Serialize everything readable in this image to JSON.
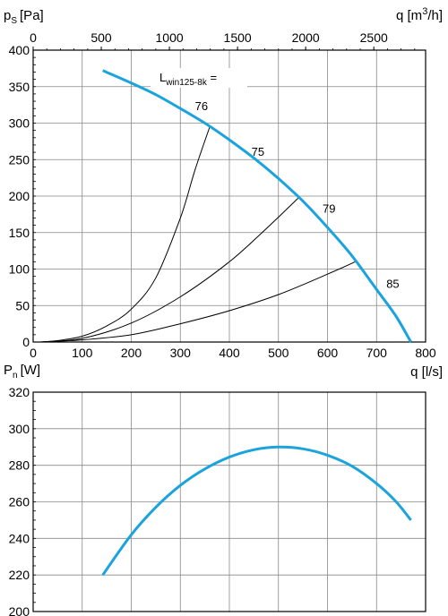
{
  "chart_data": [
    {
      "type": "line",
      "ylabel": "p",
      "ylabel_sub": "S",
      "ylabel_unit": "[Pa]",
      "xlabel_bottom": "q [l/s]",
      "xlabel_top_prefix": "q [m",
      "xlabel_top_sup": "3",
      "xlabel_top_suffix": "/h]",
      "xlim": [
        0,
        800
      ],
      "ylim": [
        0,
        400
      ],
      "x_ticks": [
        0,
        100,
        200,
        300,
        400,
        500,
        600,
        700,
        800
      ],
      "y_ticks": [
        0,
        50,
        100,
        150,
        200,
        250,
        300,
        350,
        400
      ],
      "top_ticks": [
        0,
        500,
        1000,
        1500,
        2000,
        2500
      ],
      "grid": true,
      "fan_curve": {
        "color": "#1aa3dd",
        "x": [
          142,
          200,
          250,
          300,
          350,
          400,
          450,
          500,
          550,
          600,
          650,
          700,
          740,
          770
        ],
        "y": [
          372,
          355,
          339,
          320,
          300,
          277,
          252,
          224,
          193,
          157,
          118,
          72,
          35,
          0
        ]
      },
      "system_curves": [
        {
          "x": [
            15,
            50,
            100,
            150,
            200,
            250,
            300,
            330,
            360
          ],
          "y": [
            0,
            2,
            8,
            22,
            45,
            88,
            170,
            236,
            295
          ]
        },
        {
          "x": [
            15,
            100,
            200,
            300,
            400,
            470,
            540
          ],
          "y": [
            0,
            5,
            26,
            62,
            110,
            152,
            197
          ]
        },
        {
          "x": [
            15,
            100,
            200,
            300,
            400,
            500,
            600,
            660
          ],
          "y": [
            0,
            3,
            10,
            25,
            43,
            65,
            93,
            111
          ]
        }
      ],
      "annotation_lw_prefix": "L",
      "annotation_lw_sub": "win125-8k",
      "annotation_lw_suffix": " =",
      "sound_labels": [
        {
          "text": "76",
          "x": 330,
          "y": 318
        },
        {
          "text": "75",
          "x": 445,
          "y": 255
        },
        {
          "text": "79",
          "x": 590,
          "y": 177
        },
        {
          "text": "85",
          "x": 720,
          "y": 74
        }
      ]
    },
    {
      "type": "line",
      "ylabel": "P",
      "ylabel_sub": "n",
      "ylabel_unit": "[W]",
      "xlim": [
        0,
        800
      ],
      "ylim": [
        200,
        320
      ],
      "y_ticks": [
        200,
        220,
        240,
        260,
        280,
        300,
        320
      ],
      "grid": true,
      "power_curve": {
        "color": "#1aa3dd",
        "x": [
          142,
          200,
          250,
          300,
          350,
          400,
          450,
          500,
          550,
          600,
          650,
          700,
          740,
          770
        ],
        "y": [
          220,
          242,
          257,
          269,
          278,
          284.5,
          288.5,
          290,
          289,
          285.5,
          279.5,
          270,
          260,
          250
        ]
      }
    }
  ]
}
